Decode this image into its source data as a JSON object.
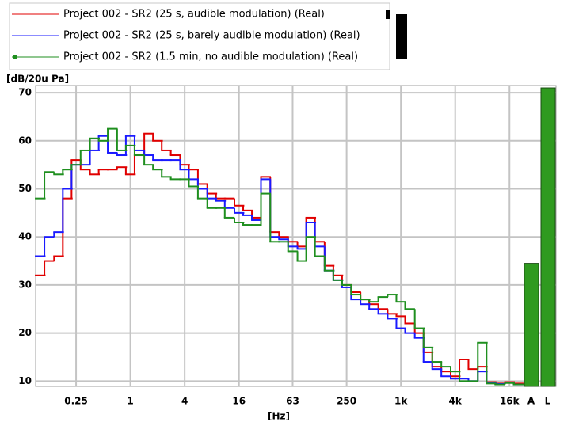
{
  "chart_data": {
    "type": "step",
    "y_label": "[dB/20u Pa]",
    "x_label": "[Hz]",
    "log_x": true,
    "grid": true,
    "x": [
      0.1,
      0.125,
      0.16,
      0.2,
      0.25,
      0.315,
      0.4,
      0.5,
      0.63,
      0.8,
      1,
      1.25,
      1.6,
      2,
      2.5,
      3.15,
      4,
      5,
      6.3,
      8,
      10,
      12.5,
      16,
      20,
      25,
      31.5,
      40,
      50,
      63,
      80,
      100,
      125,
      160,
      200,
      250,
      315,
      400,
      500,
      630,
      800,
      1000,
      1250,
      1600,
      2000,
      2500,
      3150,
      4000,
      5000,
      6300,
      8000,
      10000,
      12500,
      16000,
      20000
    ],
    "series": [
      {
        "name": "Project 002 - SR2 (25 s, audible modulation) (Real)",
        "color": "#e00000",
        "values": [
          32,
          35,
          36,
          48,
          56,
          54,
          53,
          54,
          54,
          54.5,
          53,
          57,
          61.5,
          60,
          58,
          57,
          55,
          54,
          51,
          49,
          48,
          48,
          46.5,
          45.5,
          44,
          52.5,
          41,
          40,
          39,
          38,
          44,
          39,
          34,
          32,
          30,
          28.5,
          27,
          26,
          25,
          24,
          23.5,
          22,
          20,
          16,
          13,
          12,
          11,
          14.5,
          12.5,
          13,
          9.8,
          9.5,
          9.8,
          9.5
        ]
      },
      {
        "name": "Project 002 - SR2 (25 s, barely audible modulation) (Real)",
        "color": "#1a1aff",
        "values": [
          36,
          40,
          41,
          50,
          55,
          55,
          58,
          61,
          57.5,
          57,
          61,
          58,
          57,
          56,
          56,
          56,
          54,
          52,
          50,
          48,
          47.5,
          46,
          45,
          44.5,
          43.5,
          52,
          40,
          39.5,
          38,
          37.5,
          43,
          38,
          33,
          31,
          29.5,
          27,
          26,
          25,
          24,
          23,
          21,
          20,
          19,
          14,
          12.5,
          11,
          10.5,
          10.5,
          10,
          12,
          9.7,
          9.4,
          9.7,
          9.3
        ]
      },
      {
        "name": "Project 002 - SR2 (1.5 min, no audible modulation) (Real)",
        "color": "#1f8f1f",
        "marker": "circle",
        "values": [
          48,
          53.5,
          53,
          54,
          55,
          58,
          60.5,
          60,
          62.5,
          58,
          59,
          57,
          55,
          54,
          52.5,
          52,
          52,
          50.5,
          48,
          46,
          46,
          44,
          43,
          42.5,
          42.5,
          49,
          39,
          39,
          37,
          35,
          40,
          36,
          33,
          31,
          30,
          28,
          27,
          26.5,
          27.5,
          28,
          26.5,
          25,
          21,
          17,
          14,
          13,
          12,
          10,
          10,
          18,
          9.5,
          9.3,
          9.6,
          9.3
        ]
      }
    ],
    "totals": {
      "categories": [
        "A",
        "L"
      ],
      "values": [
        34.5,
        71
      ],
      "color": "#2f9a1f"
    },
    "xlim": [
      0.089,
      22449
    ],
    "ylim": [
      8.9,
      71.5
    ],
    "xticks": [
      0.25,
      1,
      4,
      16,
      63,
      250,
      {
        "value": 1000,
        "label": "1k"
      },
      {
        "value": 4000,
        "label": "4k"
      },
      {
        "value": 16000,
        "label": "16k"
      }
    ],
    "yticks": [
      10,
      20,
      30,
      40,
      50,
      60,
      70
    ]
  }
}
